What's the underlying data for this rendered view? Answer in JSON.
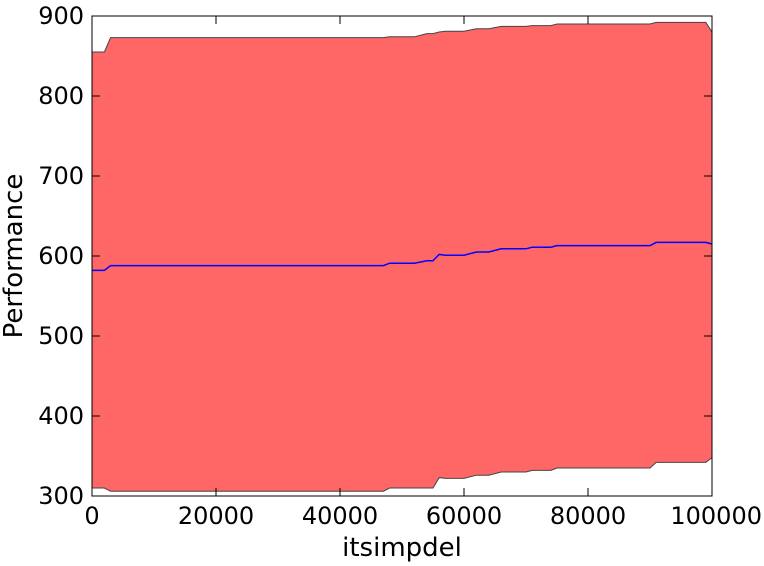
{
  "chart_data": {
    "type": "area",
    "title": "",
    "xlabel": "itsimpdel",
    "ylabel": "Performance",
    "xlim": [
      0,
      100000
    ],
    "ylim": [
      300,
      900
    ],
    "xticks": [
      0,
      20000,
      40000,
      60000,
      80000,
      100000
    ],
    "yticks": [
      300,
      400,
      500,
      600,
      700,
      800,
      900
    ],
    "grid": false,
    "colors": {
      "band_fill": "#ff6666",
      "band_edge": "#444444",
      "mean_line": "#0000ff",
      "axes": "#000000"
    },
    "x": [
      0,
      2000,
      3000,
      10000,
      20000,
      30000,
      40000,
      47000,
      48000,
      51000,
      52000,
      54000,
      55000,
      56000,
      57000,
      60000,
      62000,
      64000,
      66000,
      70000,
      71000,
      74000,
      75000,
      80000,
      90000,
      91000,
      95000,
      99000,
      100000
    ],
    "series": [
      {
        "role": "mean",
        "values": [
          582,
          582,
          588,
          588,
          588,
          588,
          588,
          588,
          591,
          591,
          591,
          594,
          594,
          602,
          601,
          601,
          605,
          605,
          609,
          609,
          611,
          611,
          613,
          613,
          613,
          617,
          617,
          617,
          615
        ]
      },
      {
        "role": "upper",
        "values": [
          855,
          855,
          873,
          873,
          873,
          873,
          873,
          873,
          874,
          874,
          874,
          878,
          878,
          880,
          881,
          881,
          884,
          884,
          887,
          887,
          888,
          888,
          890,
          890,
          890,
          892,
          892,
          892,
          880
        ]
      },
      {
        "role": "lower",
        "values": [
          310,
          310,
          306,
          306,
          306,
          306,
          306,
          306,
          310,
          310,
          310,
          310,
          310,
          323,
          322,
          322,
          326,
          326,
          330,
          330,
          332,
          332,
          335,
          335,
          335,
          342,
          342,
          342,
          348
        ]
      }
    ]
  }
}
